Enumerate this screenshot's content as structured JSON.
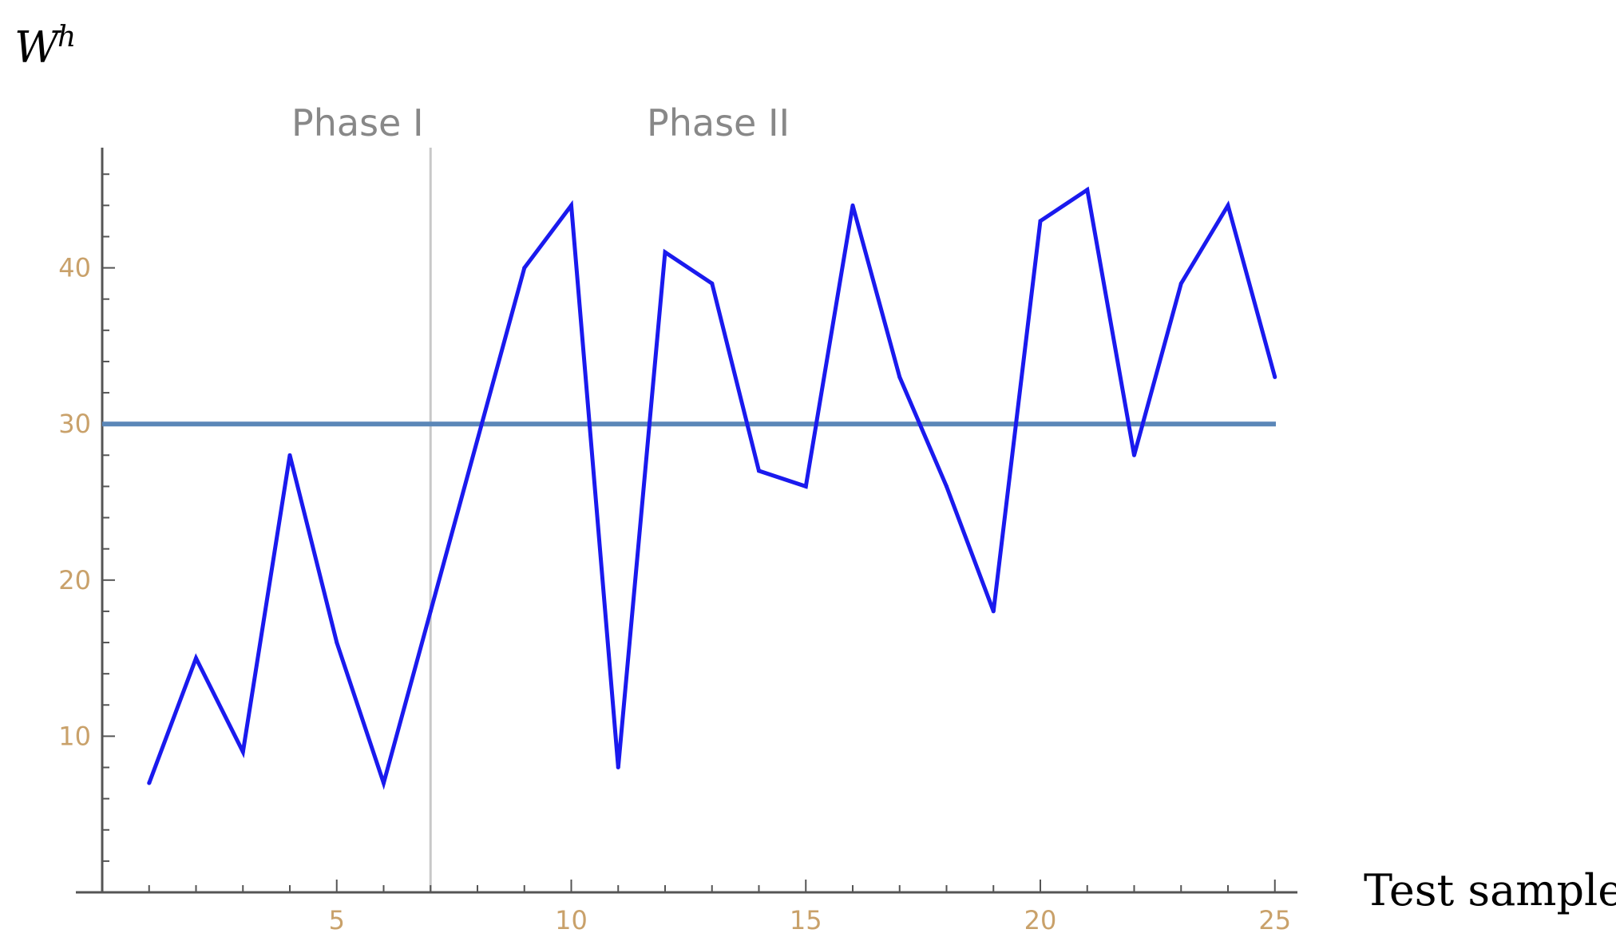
{
  "chart_data": {
    "type": "line",
    "xlabel": "Test sample",
    "ylabel": {
      "base": "W",
      "sup": "h"
    },
    "xlim": [
      0,
      25.5
    ],
    "ylim": [
      0,
      47.5
    ],
    "xticks": [
      5,
      10,
      15,
      20,
      25
    ],
    "yticks": [
      10,
      20,
      30,
      40
    ],
    "x": [
      1,
      2,
      3,
      4,
      5,
      6,
      7,
      8,
      9,
      10,
      11,
      12,
      13,
      14,
      15,
      16,
      17,
      18,
      19,
      20,
      21,
      22,
      23,
      24,
      25
    ],
    "series": [
      {
        "values": [
          7,
          15,
          9,
          28,
          16,
          7,
          18,
          29,
          40,
          44,
          8,
          41,
          39,
          27,
          26,
          44,
          33,
          26,
          18,
          43,
          45,
          28,
          39,
          44,
          33
        ],
        "color": "#1a1aee"
      }
    ],
    "threshold": {
      "value": 30,
      "color": "#5b87b8"
    },
    "phase_divider": {
      "x": 7,
      "color": "#c8c8c8"
    },
    "phase_labels": [
      "Phase I",
      "Phase II"
    ],
    "grid": false
  }
}
